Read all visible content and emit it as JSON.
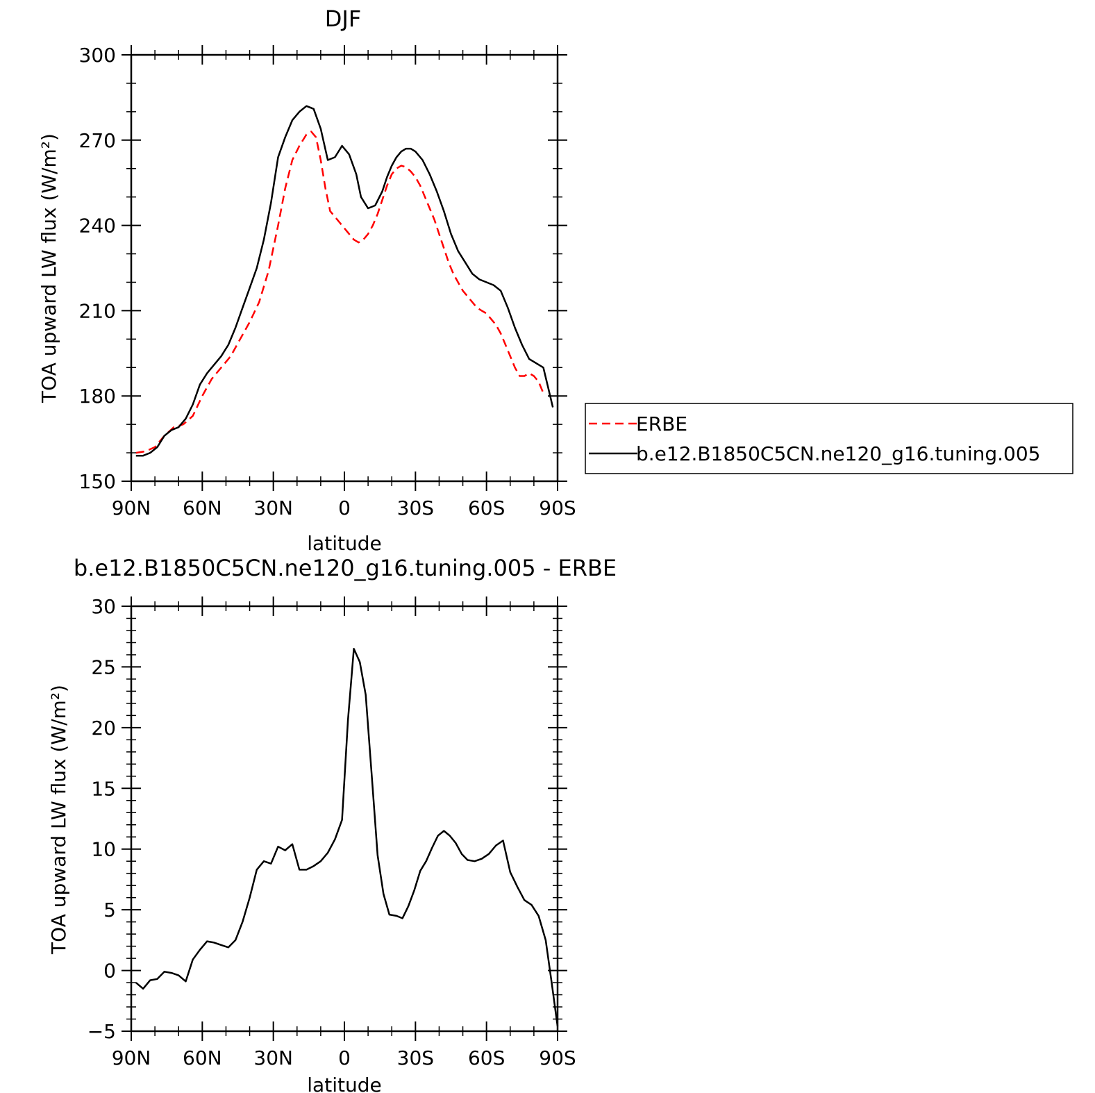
{
  "chart_data": [
    {
      "type": "line",
      "title": "DJF",
      "xlabel": "latitude",
      "ylabel": "TOA upward LW flux (W/m²)",
      "xlim": [
        -90,
        90
      ],
      "ylim": [
        150,
        300
      ],
      "x_ticks": [
        {
          "value": -90,
          "label": "90N"
        },
        {
          "value": -60,
          "label": "60N"
        },
        {
          "value": -30,
          "label": "30N"
        },
        {
          "value": 0,
          "label": "0"
        },
        {
          "value": 30,
          "label": "30S"
        },
        {
          "value": 60,
          "label": "60S"
        },
        {
          "value": 90,
          "label": "90S"
        }
      ],
      "y_ticks": [
        {
          "value": 150,
          "label": "150"
        },
        {
          "value": 180,
          "label": "180"
        },
        {
          "value": 210,
          "label": "210"
        },
        {
          "value": 240,
          "label": "240"
        },
        {
          "value": 270,
          "label": "270"
        },
        {
          "value": 300,
          "label": "300"
        }
      ],
      "grid": false,
      "legend": {
        "position": "right"
      },
      "series": [
        {
          "name": "ERBE",
          "color": "#ff0000",
          "dash": true,
          "points": [
            [
              -88,
              160
            ],
            [
              -84,
              160.5
            ],
            [
              -80,
              162
            ],
            [
              -76,
              166
            ],
            [
              -72,
              169
            ],
            [
              -68,
              170
            ],
            [
              -64,
              173
            ],
            [
              -60,
              180
            ],
            [
              -56,
              186
            ],
            [
              -52,
              190
            ],
            [
              -48,
              194
            ],
            [
              -44,
              200
            ],
            [
              -40,
              206
            ],
            [
              -36,
              213
            ],
            [
              -32,
              224
            ],
            [
              -28,
              240
            ],
            [
              -25,
              253
            ],
            [
              -22,
              263
            ],
            [
              -19,
              268
            ],
            [
              -16,
              272
            ],
            [
              -14,
              273
            ],
            [
              -12,
              271
            ],
            [
              -10,
              263
            ],
            [
              -8,
              253
            ],
            [
              -6,
              245
            ],
            [
              -4,
              243
            ],
            [
              -2,
              241
            ],
            [
              0,
              239
            ],
            [
              2,
              237
            ],
            [
              4,
              235
            ],
            [
              6,
              234
            ],
            [
              8,
              235
            ],
            [
              10,
              237
            ],
            [
              12,
              240
            ],
            [
              14,
              244
            ],
            [
              16,
              249
            ],
            [
              18,
              254
            ],
            [
              20,
              258
            ],
            [
              22,
              260
            ],
            [
              24,
              261
            ],
            [
              26,
              260.5
            ],
            [
              28,
              259
            ],
            [
              30,
              257
            ],
            [
              32,
              254
            ],
            [
              34,
              250
            ],
            [
              36,
              246
            ],
            [
              38,
              242
            ],
            [
              40,
              237
            ],
            [
              42,
              232
            ],
            [
              44,
              227
            ],
            [
              46,
              223
            ],
            [
              48,
              220
            ],
            [
              50,
              217
            ],
            [
              52,
              215
            ],
            [
              54,
              213
            ],
            [
              56,
              211
            ],
            [
              58,
              210
            ],
            [
              60,
              209
            ],
            [
              62,
              207
            ],
            [
              64,
              205
            ],
            [
              66,
              202
            ],
            [
              68,
              198
            ],
            [
              70,
              194
            ],
            [
              72,
              190
            ],
            [
              74,
              187
            ],
            [
              76,
              187
            ],
            [
              78,
              188
            ],
            [
              80,
              187
            ],
            [
              82,
              185
            ],
            [
              84,
              181
            ]
          ]
        },
        {
          "name": "b.e12.B1850C5CN.ne120_g16.tuning.005",
          "color": "#000000",
          "dash": false,
          "points": [
            [
              -88,
              159
            ],
            [
              -85,
              159
            ],
            [
              -82,
              160
            ],
            [
              -79,
              162
            ],
            [
              -76,
              166
            ],
            [
              -73,
              168
            ],
            [
              -70,
              169
            ],
            [
              -67,
              172
            ],
            [
              -64,
              177
            ],
            [
              -61,
              184
            ],
            [
              -58,
              188
            ],
            [
              -55,
              191
            ],
            [
              -52,
              194
            ],
            [
              -49,
              198
            ],
            [
              -46,
              204
            ],
            [
              -43,
              211
            ],
            [
              -40,
              218
            ],
            [
              -37,
              225
            ],
            [
              -34,
              235
            ],
            [
              -31,
              248
            ],
            [
              -28,
              264
            ],
            [
              -25,
              271
            ],
            [
              -22,
              277
            ],
            [
              -19,
              280
            ],
            [
              -16,
              282
            ],
            [
              -13,
              281
            ],
            [
              -10,
              274
            ],
            [
              -7,
              263
            ],
            [
              -4,
              264
            ],
            [
              -1,
              268
            ],
            [
              2,
              265
            ],
            [
              5,
              258
            ],
            [
              7,
              250
            ],
            [
              10,
              246
            ],
            [
              13,
              247
            ],
            [
              16,
              252
            ],
            [
              18,
              257
            ],
            [
              20,
              261
            ],
            [
              22,
              264
            ],
            [
              24,
              266
            ],
            [
              26,
              267
            ],
            [
              28,
              267
            ],
            [
              30,
              266
            ],
            [
              33,
              263
            ],
            [
              36,
              258
            ],
            [
              39,
              252
            ],
            [
              42,
              245
            ],
            [
              45,
              237
            ],
            [
              48,
              231
            ],
            [
              51,
              227
            ],
            [
              54,
              223
            ],
            [
              57,
              221
            ],
            [
              60,
              220
            ],
            [
              63,
              219
            ],
            [
              66,
              217
            ],
            [
              69,
              211
            ],
            [
              72,
              204
            ],
            [
              75,
              198
            ],
            [
              78,
              193
            ],
            [
              80,
              192
            ],
            [
              82,
              191
            ],
            [
              84,
              190
            ],
            [
              86,
              183
            ],
            [
              88,
              176
            ]
          ]
        }
      ]
    },
    {
      "type": "line",
      "title": "b.e12.B1850C5CN.ne120_g16.tuning.005 - ERBE",
      "xlabel": "latitude",
      "ylabel": "TOA upward LW flux (W/m²)",
      "xlim": [
        -90,
        90
      ],
      "ylim": [
        -5,
        30
      ],
      "x_ticks": [
        {
          "value": -90,
          "label": "90N"
        },
        {
          "value": -60,
          "label": "60N"
        },
        {
          "value": -30,
          "label": "30N"
        },
        {
          "value": 0,
          "label": "0"
        },
        {
          "value": 30,
          "label": "30S"
        },
        {
          "value": 60,
          "label": "60S"
        },
        {
          "value": 90,
          "label": "90S"
        }
      ],
      "y_ticks": [
        {
          "value": -5,
          "label": "−5"
        },
        {
          "value": 0,
          "label": "0"
        },
        {
          "value": 5,
          "label": "5"
        },
        {
          "value": 10,
          "label": "10"
        },
        {
          "value": 15,
          "label": "15"
        },
        {
          "value": 20,
          "label": "20"
        },
        {
          "value": 25,
          "label": "25"
        },
        {
          "value": 30,
          "label": "30"
        }
      ],
      "grid": false,
      "series": [
        {
          "color": "#000000",
          "dash": false,
          "points": [
            [
              -88,
              -1.0
            ],
            [
              -85,
              -1.5
            ],
            [
              -82,
              -0.8
            ],
            [
              -79,
              -0.7
            ],
            [
              -76,
              -0.1
            ],
            [
              -73,
              -0.2
            ],
            [
              -70,
              -0.4
            ],
            [
              -67,
              -0.9
            ],
            [
              -64,
              0.9
            ],
            [
              -61,
              1.7
            ],
            [
              -58,
              2.4
            ],
            [
              -55,
              2.3
            ],
            [
              -52,
              2.1
            ],
            [
              -49,
              1.9
            ],
            [
              -46,
              2.5
            ],
            [
              -43,
              4.0
            ],
            [
              -40,
              6.0
            ],
            [
              -37,
              8.3
            ],
            [
              -34,
              9.0
            ],
            [
              -31,
              8.8
            ],
            [
              -28,
              10.2
            ],
            [
              -25,
              9.9
            ],
            [
              -22,
              10.4
            ],
            [
              -19,
              8.3
            ],
            [
              -16,
              8.3
            ],
            [
              -13,
              8.6
            ],
            [
              -10,
              9.0
            ],
            [
              -7,
              9.7
            ],
            [
              -4,
              10.8
            ],
            [
              -1,
              12.4
            ],
            [
              1.5,
              20.6
            ],
            [
              4,
              26.5
            ],
            [
              6.5,
              25.4
            ],
            [
              9,
              22.7
            ],
            [
              11.5,
              16.2
            ],
            [
              14,
              9.5
            ],
            [
              16.5,
              6.3
            ],
            [
              19,
              4.6
            ],
            [
              22,
              4.5
            ],
            [
              24.5,
              4.3
            ],
            [
              27,
              5.3
            ],
            [
              29.5,
              6.6
            ],
            [
              32,
              8.2
            ],
            [
              34.5,
              9.0
            ],
            [
              37,
              10.1
            ],
            [
              39.5,
              11.1
            ],
            [
              42,
              11.5
            ],
            [
              44.5,
              11.1
            ],
            [
              47,
              10.5
            ],
            [
              49.5,
              9.6
            ],
            [
              52,
              9.1
            ],
            [
              55,
              9.0
            ],
            [
              58,
              9.2
            ],
            [
              61,
              9.6
            ],
            [
              64,
              10.3
            ],
            [
              67,
              10.7
            ],
            [
              70,
              8.1
            ],
            [
              73,
              6.9
            ],
            [
              76,
              5.8
            ],
            [
              79,
              5.4
            ],
            [
              82,
              4.5
            ],
            [
              85,
              2.5
            ],
            [
              87.5,
              -1.0
            ],
            [
              90,
              -4.6
            ]
          ]
        }
      ]
    }
  ]
}
